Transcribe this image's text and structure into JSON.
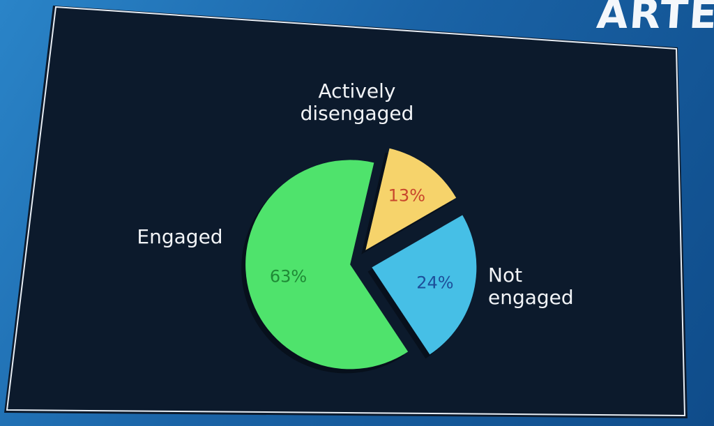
{
  "brand": {
    "text": "ARTE"
  },
  "chart_data": {
    "type": "pie",
    "title": "",
    "slices": [
      {
        "label": "Actively disengaged",
        "label_lines": [
          "Actively",
          "disengaged"
        ],
        "value": 24,
        "value_label": "24%",
        "color": "#46bfe6",
        "text_color": "#1d4f9a"
      },
      {
        "label": "Not engaged",
        "label_lines": [
          "Not",
          "engaged"
        ],
        "value": 63,
        "value_label": "63%",
        "color": "#4fe36c",
        "text_color": "#1f8a36"
      },
      {
        "label": "Engaged",
        "label_lines": [
          "Engaged"
        ],
        "value": 13,
        "value_label": "13%",
        "color": "#f6d36b",
        "text_color": "#c8462c"
      }
    ],
    "colors": {
      "panel": "#0c1a2c",
      "panel_border": "#e8eef5",
      "slice_label": "#f2f4f7"
    }
  }
}
